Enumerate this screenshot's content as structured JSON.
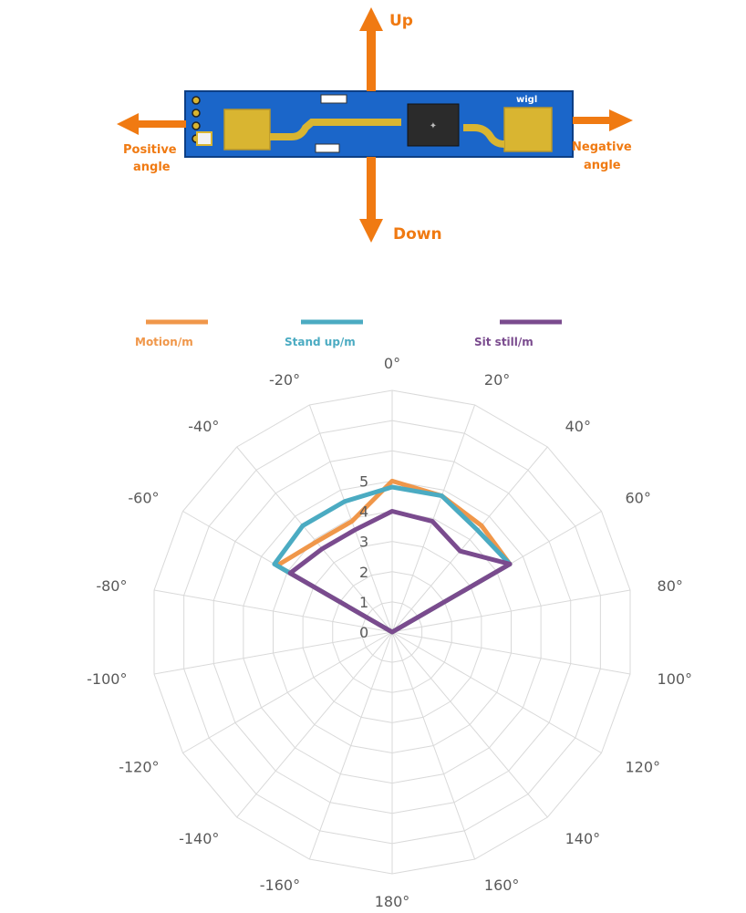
{
  "colors": {
    "arrow": "#f07a12",
    "label": "#f07a12",
    "board": "#1b66c9",
    "pad": "#d9b531",
    "chip": "#2b2b2b",
    "grid": "#d9d9d9",
    "axis_text": "#595959"
  },
  "diagram": {
    "up_label": "Up",
    "down_label": "Down",
    "positive_label_line1": "Positive",
    "positive_label_line2": "angle",
    "negative_label_line1": "Negative",
    "negative_label_line2": "angle",
    "board_logo": "wigl",
    "chip_icon": "chip-icon"
  },
  "chart_data": {
    "type": "radar",
    "title": "",
    "angle_labels": [
      "0°",
      "20°",
      "40°",
      "60°",
      "80°",
      "100°",
      "120°",
      "140°",
      "160°",
      "180°",
      "-160°",
      "-140°",
      "-120°",
      "-100°",
      "-80°",
      "-60°",
      "-40°",
      "-20°"
    ],
    "radial_ticks": [
      "0",
      "1",
      "2",
      "3",
      "4",
      "5"
    ],
    "rlim": [
      0,
      5
    ],
    "grid": true,
    "legend_position": "top",
    "series": [
      {
        "name": "Motion/m",
        "color": "#f0974a",
        "values": [
          5.0,
          4.8,
          4.6,
          4.5,
          0,
          0,
          0,
          0,
          0,
          0,
          0,
          0,
          0,
          0,
          0,
          4.4,
          3.9,
          3.9
        ]
      },
      {
        "name": "Stand up/m",
        "color": "#4babc2",
        "values": [
          4.8,
          4.8,
          4.4,
          4.5,
          0,
          0,
          0,
          0,
          0,
          0,
          0,
          0,
          0,
          0,
          0,
          4.5,
          4.6,
          4.6
        ]
      },
      {
        "name": "Sit still/m",
        "color": "#7a4b8e",
        "values": [
          4.0,
          3.9,
          3.5,
          4.5,
          0,
          0,
          0,
          0,
          0,
          0,
          0,
          0,
          0,
          0,
          0,
          3.9,
          3.6,
          3.6
        ]
      }
    ]
  }
}
